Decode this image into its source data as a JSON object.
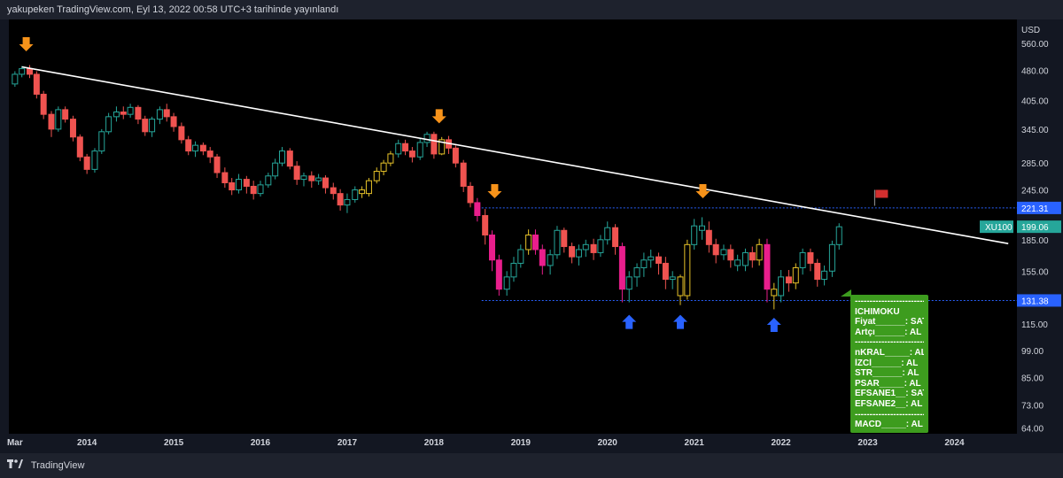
{
  "header": {
    "text": "yakupeken TradingView.com, Eyl 13, 2022 00:58 UTC+3 tarihinde yayınlandı"
  },
  "footer": {
    "brand": "TradingView"
  },
  "colors": {
    "up": "#26a69a",
    "down": "#ef5350",
    "magenta": "#e91e8c",
    "yellow": "#e6c229",
    "trend": "#ffffff",
    "level": "#2962ff",
    "marker_top": "#f7931a",
    "marker_bottom": "#2962ff",
    "legend_bg": "#3d9c1e",
    "price_tag": "#26a69a",
    "level_tag": "#2962ff",
    "flag": "#d32f2f"
  },
  "chart_data": {
    "type": "candlestick",
    "symbol": "XU100",
    "currency": "USD",
    "current_price": "199.06",
    "scale": "log",
    "ylim": [
      62,
      640
    ],
    "y_ticks": [
      "560.00",
      "480.00",
      "405.00",
      "345.00",
      "285.00",
      "245.00",
      "185.00",
      "155.00",
      "115.00",
      "99.00",
      "85.00",
      "73.00",
      "64.00"
    ],
    "x_ticks": [
      {
        "label": "Mar",
        "t": 2013.17
      },
      {
        "label": "2014",
        "t": 2014
      },
      {
        "label": "2015",
        "t": 2015
      },
      {
        "label": "2016",
        "t": 2016
      },
      {
        "label": "2017",
        "t": 2017
      },
      {
        "label": "2018",
        "t": 2018
      },
      {
        "label": "2019",
        "t": 2019
      },
      {
        "label": "2020",
        "t": 2020
      },
      {
        "label": "2021",
        "t": 2021
      },
      {
        "label": "2022",
        "t": 2022
      },
      {
        "label": "2023",
        "t": 2023
      },
      {
        "label": "2024",
        "t": 2024
      }
    ],
    "xlim": [
      2013.1,
      2024.72
    ],
    "levels": [
      {
        "price": 221.31,
        "label": "221.31",
        "from_t": 2018.55
      },
      {
        "price": 131.38,
        "label": "131.38",
        "from_t": 2018.55
      }
    ],
    "trendline": [
      {
        "t": 2013.25,
        "price": 490
      },
      {
        "t": 2024.62,
        "price": 181
      }
    ],
    "markers_down": [
      {
        "t": 2013.3,
        "price": 540
      },
      {
        "t": 2018.06,
        "price": 360
      },
      {
        "t": 2018.7,
        "price": 236
      },
      {
        "t": 2021.1,
        "price": 236
      }
    ],
    "markers_up": [
      {
        "t": 2020.25,
        "price": 120
      },
      {
        "t": 2020.84,
        "price": 120
      },
      {
        "t": 2021.92,
        "price": 118
      }
    ],
    "flag": {
      "t": 2023.08,
      "price": 224
    },
    "candles": [
      [
        2013.17,
        445,
        470,
        438,
        478,
        "up"
      ],
      [
        2013.25,
        470,
        485,
        462,
        492,
        "up"
      ],
      [
        2013.34,
        485,
        470,
        460,
        495,
        "down"
      ],
      [
        2013.42,
        470,
        420,
        410,
        478,
        "down"
      ],
      [
        2013.5,
        420,
        375,
        365,
        428,
        "down"
      ],
      [
        2013.59,
        375,
        345,
        330,
        382,
        "down"
      ],
      [
        2013.67,
        345,
        385,
        340,
        392,
        "up"
      ],
      [
        2013.75,
        385,
        365,
        358,
        392,
        "down"
      ],
      [
        2013.84,
        365,
        330,
        322,
        372,
        "down"
      ],
      [
        2013.92,
        330,
        295,
        288,
        335,
        "down"
      ],
      [
        2014.0,
        295,
        275,
        268,
        300,
        "down"
      ],
      [
        2014.09,
        275,
        305,
        270,
        310,
        "up"
      ],
      [
        2014.17,
        305,
        340,
        300,
        345,
        "up"
      ],
      [
        2014.25,
        340,
        370,
        335,
        378,
        "up"
      ],
      [
        2014.34,
        370,
        380,
        360,
        392,
        "up"
      ],
      [
        2014.42,
        380,
        375,
        365,
        392,
        "down"
      ],
      [
        2014.5,
        375,
        390,
        368,
        398,
        "up"
      ],
      [
        2014.59,
        390,
        365,
        355,
        395,
        "down"
      ],
      [
        2014.67,
        365,
        340,
        332,
        372,
        "down"
      ],
      [
        2014.75,
        340,
        365,
        330,
        370,
        "up"
      ],
      [
        2014.84,
        365,
        385,
        355,
        392,
        "up"
      ],
      [
        2014.92,
        385,
        370,
        360,
        398,
        "down"
      ],
      [
        2015.0,
        370,
        350,
        340,
        378,
        "down"
      ],
      [
        2015.09,
        350,
        325,
        318,
        358,
        "down"
      ],
      [
        2015.17,
        325,
        305,
        298,
        332,
        "down"
      ],
      [
        2015.25,
        305,
        315,
        295,
        322,
        "up"
      ],
      [
        2015.34,
        315,
        305,
        298,
        320,
        "down"
      ],
      [
        2015.42,
        305,
        295,
        285,
        312,
        "down"
      ],
      [
        2015.5,
        295,
        270,
        262,
        300,
        "down"
      ],
      [
        2015.59,
        270,
        255,
        248,
        278,
        "down"
      ],
      [
        2015.67,
        255,
        245,
        238,
        262,
        "down"
      ],
      [
        2015.75,
        245,
        260,
        240,
        268,
        "up"
      ],
      [
        2015.84,
        260,
        250,
        240,
        265,
        "down"
      ],
      [
        2015.92,
        250,
        240,
        232,
        258,
        "down"
      ],
      [
        2016.0,
        240,
        252,
        236,
        258,
        "up"
      ],
      [
        2016.09,
        252,
        265,
        248,
        270,
        "up"
      ],
      [
        2016.17,
        265,
        285,
        260,
        292,
        "up"
      ],
      [
        2016.25,
        285,
        305,
        280,
        312,
        "up"
      ],
      [
        2016.34,
        305,
        280,
        275,
        310,
        "down"
      ],
      [
        2016.42,
        280,
        260,
        252,
        288,
        "down"
      ],
      [
        2016.5,
        260,
        265,
        250,
        270,
        "up"
      ],
      [
        2016.59,
        265,
        258,
        248,
        272,
        "down"
      ],
      [
        2016.67,
        258,
        262,
        252,
        268,
        "up"
      ],
      [
        2016.75,
        262,
        248,
        240,
        266,
        "down"
      ],
      [
        2016.84,
        248,
        240,
        232,
        255,
        "down"
      ],
      [
        2016.92,
        240,
        225,
        218,
        246,
        "down"
      ],
      [
        2017.0,
        225,
        232,
        215,
        240,
        "up"
      ],
      [
        2017.09,
        232,
        245,
        228,
        250,
        "up"
      ],
      [
        2017.17,
        245,
        240,
        234,
        250,
        "yellow"
      ],
      [
        2017.25,
        240,
        258,
        236,
        262,
        "yellow"
      ],
      [
        2017.34,
        258,
        272,
        254,
        278,
        "yellow"
      ],
      [
        2017.42,
        272,
        285,
        266,
        290,
        "yellow"
      ],
      [
        2017.5,
        285,
        300,
        280,
        305,
        "yellow"
      ],
      [
        2017.59,
        300,
        318,
        294,
        325,
        "up"
      ],
      [
        2017.67,
        318,
        305,
        298,
        325,
        "down"
      ],
      [
        2017.75,
        305,
        295,
        286,
        312,
        "down"
      ],
      [
        2017.84,
        295,
        320,
        290,
        328,
        "up"
      ],
      [
        2017.92,
        320,
        335,
        312,
        340,
        "up"
      ],
      [
        2018.0,
        335,
        300,
        292,
        340,
        "down"
      ],
      [
        2018.09,
        300,
        325,
        298,
        330,
        "yellow"
      ],
      [
        2018.17,
        325,
        310,
        300,
        332,
        "down"
      ],
      [
        2018.25,
        310,
        285,
        278,
        315,
        "down"
      ],
      [
        2018.34,
        285,
        250,
        242,
        290,
        "down"
      ],
      [
        2018.42,
        250,
        228,
        222,
        256,
        "down"
      ],
      [
        2018.5,
        228,
        212,
        205,
        234,
        "magenta"
      ],
      [
        2018.59,
        212,
        190,
        180,
        220,
        "down"
      ],
      [
        2018.67,
        190,
        165,
        155,
        195,
        "magenta"
      ],
      [
        2018.75,
        165,
        140,
        135,
        170,
        "magenta"
      ],
      [
        2018.84,
        140,
        150,
        135,
        155,
        "up"
      ],
      [
        2018.92,
        150,
        162,
        146,
        168,
        "up"
      ],
      [
        2019.0,
        162,
        175,
        158,
        180,
        "up"
      ],
      [
        2019.09,
        175,
        190,
        170,
        196,
        "yellow"
      ],
      [
        2019.17,
        190,
        175,
        170,
        196,
        "magenta"
      ],
      [
        2019.25,
        175,
        160,
        152,
        180,
        "magenta"
      ],
      [
        2019.34,
        160,
        170,
        152,
        175,
        "up"
      ],
      [
        2019.42,
        170,
        195,
        166,
        200,
        "up"
      ],
      [
        2019.5,
        195,
        178,
        172,
        198,
        "down"
      ],
      [
        2019.59,
        178,
        168,
        162,
        182,
        "down"
      ],
      [
        2019.67,
        168,
        175,
        160,
        180,
        "up"
      ],
      [
        2019.75,
        175,
        180,
        168,
        185,
        "up"
      ],
      [
        2019.84,
        180,
        172,
        165,
        186,
        "down"
      ],
      [
        2019.92,
        172,
        185,
        168,
        190,
        "up"
      ],
      [
        2020.0,
        185,
        198,
        180,
        205,
        "up"
      ],
      [
        2020.09,
        198,
        178,
        170,
        202,
        "down"
      ],
      [
        2020.17,
        178,
        140,
        130,
        182,
        "magenta"
      ],
      [
        2020.25,
        140,
        150,
        130,
        155,
        "up"
      ],
      [
        2020.34,
        150,
        158,
        142,
        162,
        "up"
      ],
      [
        2020.42,
        158,
        165,
        150,
        172,
        "up"
      ],
      [
        2020.5,
        165,
        168,
        158,
        175,
        "up"
      ],
      [
        2020.59,
        168,
        162,
        152,
        172,
        "down"
      ],
      [
        2020.67,
        162,
        148,
        140,
        168,
        "down"
      ],
      [
        2020.75,
        148,
        150,
        140,
        155,
        "up"
      ],
      [
        2020.84,
        150,
        135,
        128,
        152,
        "yellow"
      ],
      [
        2020.92,
        135,
        180,
        132,
        185,
        "yellow"
      ],
      [
        2021.0,
        180,
        200,
        175,
        208,
        "up"
      ],
      [
        2021.09,
        200,
        195,
        185,
        210,
        "up"
      ],
      [
        2021.17,
        195,
        180,
        172,
        205,
        "down"
      ],
      [
        2021.25,
        180,
        170,
        162,
        186,
        "down"
      ],
      [
        2021.34,
        170,
        175,
        165,
        180,
        "up"
      ],
      [
        2021.42,
        175,
        165,
        158,
        180,
        "down"
      ],
      [
        2021.5,
        165,
        160,
        155,
        170,
        "up"
      ],
      [
        2021.59,
        160,
        172,
        155,
        176,
        "up"
      ],
      [
        2021.67,
        172,
        165,
        158,
        178,
        "down"
      ],
      [
        2021.75,
        165,
        180,
        160,
        186,
        "yellow"
      ],
      [
        2021.84,
        180,
        140,
        130,
        186,
        "magenta"
      ],
      [
        2021.92,
        140,
        135,
        125,
        145,
        "yellow"
      ],
      [
        2022.0,
        135,
        150,
        130,
        156,
        "up"
      ],
      [
        2022.09,
        150,
        145,
        138,
        156,
        "down"
      ],
      [
        2022.17,
        145,
        158,
        140,
        162,
        "yellow"
      ],
      [
        2022.25,
        158,
        172,
        152,
        176,
        "up"
      ],
      [
        2022.34,
        172,
        162,
        155,
        176,
        "down"
      ],
      [
        2022.42,
        162,
        148,
        142,
        166,
        "down"
      ],
      [
        2022.5,
        148,
        155,
        143,
        160,
        "up"
      ],
      [
        2022.59,
        155,
        180,
        150,
        184,
        "up"
      ],
      [
        2022.67,
        180,
        199,
        175,
        203,
        "up"
      ]
    ]
  },
  "legend": {
    "rows": [
      "------------------------",
      "ICHIMOKU",
      "Fiyat______: SAT",
      "Artçı______: AL",
      "------------------------",
      "nKRAL_____: AL",
      "İZCİ______: AL",
      "STR______: AL",
      "PSAR_____: AL",
      "EFSANE1__: SAT",
      "EFSANE2__: AL",
      "------------------------",
      "MACD_____: AL"
    ]
  }
}
